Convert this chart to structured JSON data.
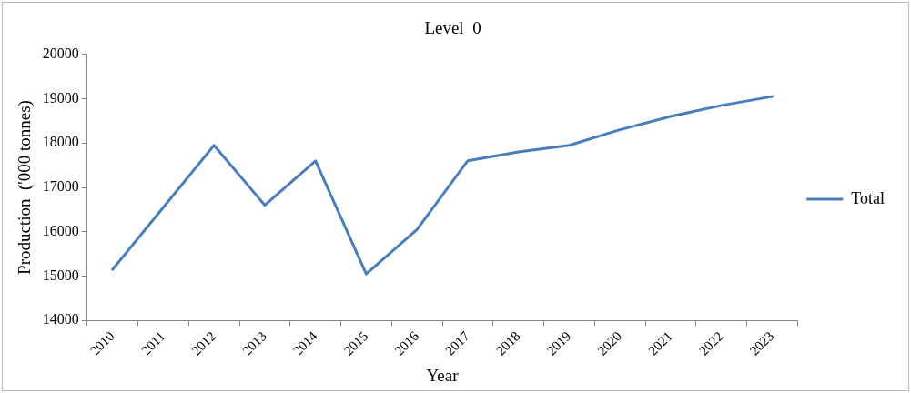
{
  "chart_data": {
    "type": "line",
    "title": "Level  0",
    "xlabel": "Year",
    "ylabel": "Production  ('000 tonnes)",
    "categories": [
      "2010",
      "2011",
      "2012",
      "2013",
      "2014",
      "2015",
      "2016",
      "2017",
      "2018",
      "2019",
      "2020",
      "2021",
      "2022",
      "2023"
    ],
    "series": [
      {
        "name": "Total",
        "color": "#4a7ebb",
        "values": [
          15150,
          16550,
          17950,
          16600,
          17600,
          15050,
          16050,
          17600,
          17800,
          17950,
          18300,
          18600,
          18850,
          19050
        ]
      }
    ],
    "ylim": [
      14000,
      20000
    ],
    "yticks": [
      14000,
      15000,
      16000,
      17000,
      18000,
      19000,
      20000
    ],
    "grid": false,
    "legend": "right",
    "marker": "none",
    "line_style": "solid"
  }
}
